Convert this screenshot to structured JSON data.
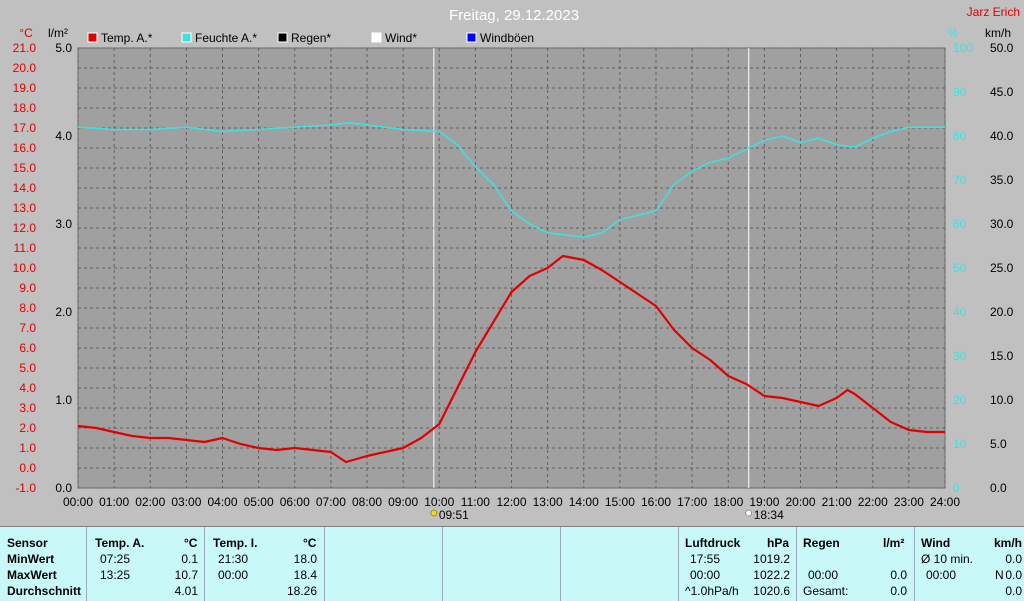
{
  "header": {
    "title": "Freitag, 29.12.2023",
    "author": "Jarz Erich"
  },
  "legend": [
    {
      "label": "Temp. A.*",
      "color": "#e00000"
    },
    {
      "label": "Feuchte A.*",
      "color": "#40e0e0"
    },
    {
      "label": "Regen*",
      "color": "#000000"
    },
    {
      "label": "Wind*",
      "color": "#ffffff"
    },
    {
      "label": "Windböen",
      "color": "#0000ff"
    }
  ],
  "axes": {
    "left1_unit": "°C",
    "left2_unit": "l/m²",
    "right1_unit": "%",
    "right2_unit": "km/h",
    "temp_ticks": [
      "21.0",
      "20.0",
      "19.0",
      "18.0",
      "17.0",
      "16.0",
      "15.0",
      "14.0",
      "13.0",
      "12.0",
      "11.0",
      "10.0",
      "9.0",
      "8.0",
      "7.0",
      "6.0",
      "5.0",
      "4.0",
      "3.0",
      "2.0",
      "1.0",
      "0.0",
      "-1.0"
    ],
    "rain_ticks": [
      "5.0",
      "4.0",
      "3.0",
      "2.0",
      "1.0",
      "0.0"
    ],
    "hum_ticks": [
      "100",
      "90",
      "80",
      "70",
      "60",
      "50",
      "40",
      "30",
      "20",
      "10",
      "0"
    ],
    "wind_ticks": [
      "50.0",
      "45.0",
      "40.0",
      "35.0",
      "30.0",
      "25.0",
      "20.0",
      "15.0",
      "10.0",
      "5.0",
      "0.0"
    ],
    "time_ticks": [
      "00:00",
      "01:00",
      "02:00",
      "03:00",
      "04:00",
      "05:00",
      "06:00",
      "07:00",
      "08:00",
      "09:00",
      "10:00",
      "11:00",
      "12:00",
      "13:00",
      "14:00",
      "15:00",
      "16:00",
      "17:00",
      "18:00",
      "19:00",
      "20:00",
      "21:00",
      "22:00",
      "23:00",
      "24:00"
    ],
    "sunrise": "09:51",
    "sunset": "18:34"
  },
  "chart_data": {
    "type": "line",
    "title": "Freitag, 29.12.2023",
    "x_unit": "hours",
    "xlim": [
      0,
      24
    ],
    "ylim_temp": [
      -1,
      21
    ],
    "ylim_rain": [
      0,
      5
    ],
    "ylim_hum": [
      0,
      100
    ],
    "ylim_wind": [
      0,
      50
    ],
    "grid": true,
    "series": [
      {
        "name": "Temp. A.*",
        "color": "#e00000",
        "axis": "temp",
        "points": [
          [
            0,
            2.1
          ],
          [
            0.5,
            2.0
          ],
          [
            1,
            1.8
          ],
          [
            1.5,
            1.6
          ],
          [
            2,
            1.5
          ],
          [
            2.5,
            1.5
          ],
          [
            3,
            1.4
          ],
          [
            3.5,
            1.3
          ],
          [
            4,
            1.5
          ],
          [
            4.5,
            1.2
          ],
          [
            5,
            1.0
          ],
          [
            5.5,
            0.9
          ],
          [
            6,
            1.0
          ],
          [
            6.5,
            0.9
          ],
          [
            7,
            0.8
          ],
          [
            7.42,
            0.3
          ],
          [
            8,
            0.6
          ],
          [
            8.5,
            0.8
          ],
          [
            9,
            1.0
          ],
          [
            9.5,
            1.5
          ],
          [
            10,
            2.2
          ],
          [
            10.5,
            4.0
          ],
          [
            11,
            5.8
          ],
          [
            11.5,
            7.3
          ],
          [
            12,
            8.8
          ],
          [
            12.5,
            9.6
          ],
          [
            13,
            10.0
          ],
          [
            13.42,
            10.6
          ],
          [
            14,
            10.4
          ],
          [
            14.5,
            9.9
          ],
          [
            15,
            9.3
          ],
          [
            15.5,
            8.7
          ],
          [
            16,
            8.1
          ],
          [
            16.5,
            6.9
          ],
          [
            17,
            6.0
          ],
          [
            17.5,
            5.4
          ],
          [
            18,
            4.6
          ],
          [
            18.5,
            4.2
          ],
          [
            19,
            3.6
          ],
          [
            19.5,
            3.5
          ],
          [
            20,
            3.3
          ],
          [
            20.5,
            3.1
          ],
          [
            21,
            3.5
          ],
          [
            21.3,
            3.9
          ],
          [
            21.5,
            3.7
          ],
          [
            22,
            3.0
          ],
          [
            22.5,
            2.3
          ],
          [
            23,
            1.9
          ],
          [
            23.5,
            1.8
          ],
          [
            24,
            1.8
          ]
        ]
      },
      {
        "name": "Feuchte A.*",
        "color": "#40e0e0",
        "axis": "hum",
        "points": [
          [
            0,
            82
          ],
          [
            1,
            81.5
          ],
          [
            2,
            81.5
          ],
          [
            3,
            82
          ],
          [
            4,
            81
          ],
          [
            5,
            81.5
          ],
          [
            6,
            82
          ],
          [
            7,
            82.5
          ],
          [
            7.5,
            83
          ],
          [
            8,
            82.5
          ],
          [
            9,
            81.5
          ],
          [
            10,
            81
          ],
          [
            10.5,
            78
          ],
          [
            11,
            73
          ],
          [
            11.5,
            69
          ],
          [
            12,
            63
          ],
          [
            12.5,
            60
          ],
          [
            13,
            58
          ],
          [
            13.5,
            57.5
          ],
          [
            14,
            57
          ],
          [
            14.5,
            58
          ],
          [
            15,
            61
          ],
          [
            15.5,
            62
          ],
          [
            16,
            63
          ],
          [
            16.5,
            69
          ],
          [
            17,
            72
          ],
          [
            17.5,
            74
          ],
          [
            18,
            75
          ],
          [
            18.5,
            77
          ],
          [
            19,
            79
          ],
          [
            19.5,
            80
          ],
          [
            20,
            78.5
          ],
          [
            20.5,
            79.5
          ],
          [
            21,
            78
          ],
          [
            21.5,
            77.5
          ],
          [
            22,
            79.5
          ],
          [
            22.5,
            81
          ],
          [
            23,
            82
          ],
          [
            24,
            82
          ]
        ]
      }
    ]
  },
  "table": {
    "row_labels": [
      "Sensor",
      "MinWert",
      "MaxWert",
      "Durchschnitt"
    ],
    "temp_a": {
      "header": "Temp. A.",
      "unit": "°C",
      "min_time": "07:25",
      "min": "0.1",
      "max_time": "13:25",
      "max": "10.7",
      "avg": "4.01"
    },
    "temp_i": {
      "header": "Temp. I.",
      "unit": "°C",
      "min_time": "21:30",
      "min": "18.0",
      "max_time": "00:00",
      "max": "18.4",
      "avg": "18.26"
    },
    "pressure": {
      "header": "Luftdruck",
      "unit": "hPa",
      "min_time": "17:55",
      "min": "1019.2",
      "max_time": "00:00",
      "max": "1022.2",
      "trend_label": "^1.0hPa/h",
      "avg": "1020.6"
    },
    "rain": {
      "header": "Regen",
      "unit": "l/m²",
      "max_time": "00:00",
      "max": "0.0",
      "total_label": "Gesamt:",
      "total": "0.0"
    },
    "wind": {
      "header": "Wind",
      "unit": "km/h",
      "avg_label": "Ø 10 min.",
      "avg10": "0.0",
      "max_time": "00:00",
      "max_dir": "N",
      "max": "0.0",
      "avg": "0.0"
    }
  }
}
